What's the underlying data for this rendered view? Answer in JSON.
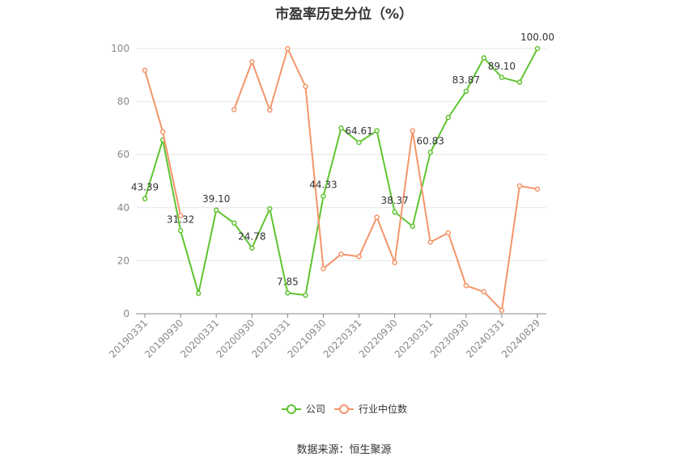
{
  "chart_data": {
    "type": "line",
    "title": "市盈率历史分位（%）",
    "ylim": [
      0,
      100
    ],
    "yticks": [
      0,
      20,
      40,
      60,
      80,
      100
    ],
    "x": [
      "20190331",
      "20190630",
      "20190930",
      "20191231",
      "20200331",
      "20200630",
      "20200930",
      "20201231",
      "20210331",
      "20210630",
      "20210930",
      "20211231",
      "20220331",
      "20220630",
      "20220930",
      "20221231",
      "20230331",
      "20230630",
      "20230930",
      "20231231",
      "20240331",
      "20240630",
      "20240829"
    ],
    "xtick_labels": [
      "20190331",
      "20190930",
      "20200331",
      "20200930",
      "20210331",
      "20210930",
      "20220331",
      "20220930",
      "20230331",
      "20230930",
      "20240331",
      "20240829"
    ],
    "grid": true,
    "legend_position": "bottom",
    "series": [
      {
        "name": "公司",
        "color": "#5fc431",
        "values": [
          43.39,
          65.5,
          31.32,
          7.7,
          39.1,
          34.2,
          24.78,
          39.6,
          7.85,
          7.0,
          44.33,
          70.0,
          64.61,
          69.0,
          38.37,
          33.0,
          60.83,
          74.0,
          83.87,
          96.5,
          89.1,
          87.3,
          100.0
        ],
        "labels": [
          "43.39",
          "",
          "31.32",
          "",
          "39.10",
          "",
          "24.78",
          "",
          "7.85",
          "",
          "44.33",
          "",
          "64.61",
          "",
          "38.37",
          "",
          "60.83",
          "",
          "83.87",
          "",
          "89.10",
          "",
          "100.00"
        ]
      },
      {
        "name": "行业中位数",
        "color": "#f4956a",
        "values": [
          91.8,
          68.6,
          37.0,
          null,
          null,
          77.0,
          95.0,
          76.8,
          100.0,
          85.7,
          17.0,
          22.5,
          21.6,
          36.4,
          19.3,
          69.0,
          27.0,
          30.5,
          10.6,
          8.3,
          1.3,
          48.2,
          47.0
        ],
        "labels": []
      }
    ]
  },
  "source_text": "数据来源：恒生聚源"
}
